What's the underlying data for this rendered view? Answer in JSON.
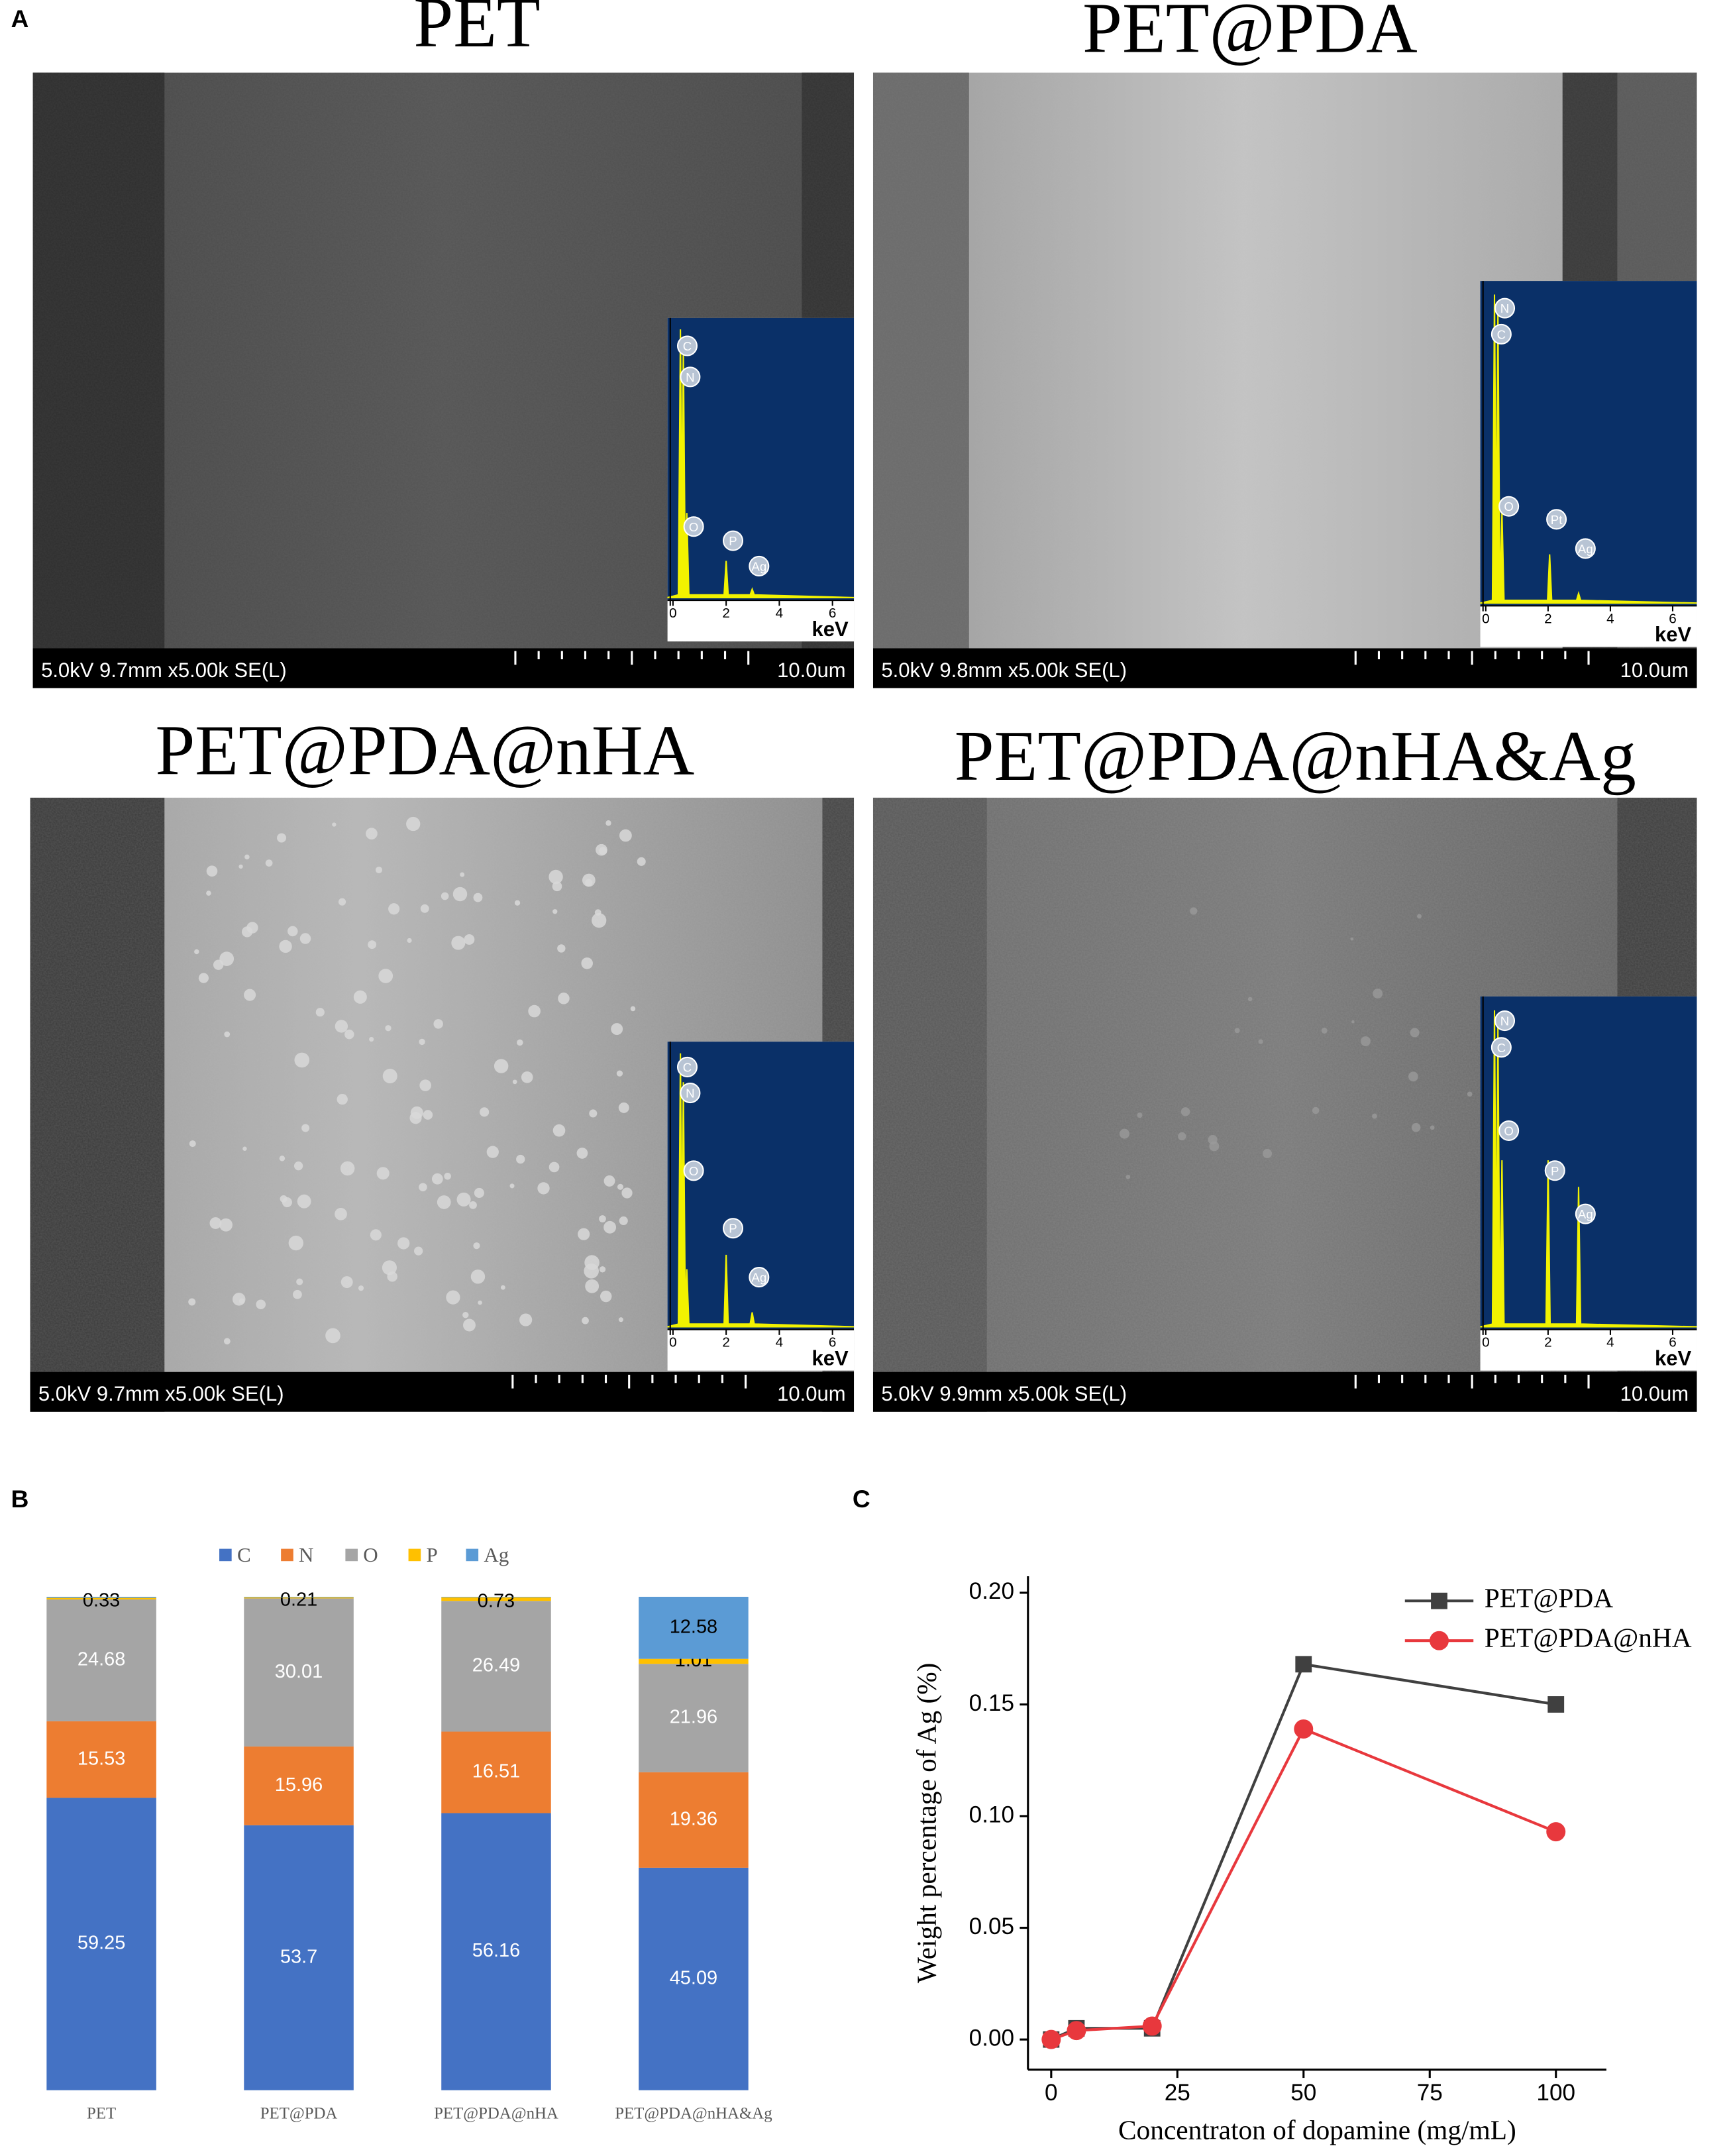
{
  "panel_labels": [
    "A",
    "B",
    "C"
  ],
  "sem_images": [
    {
      "title": "PET",
      "info": "5.0kV 9.7mm x5.00k SE(L)",
      "scale": "10.0um",
      "eds_peaks": [
        "C",
        "N",
        "O",
        "P",
        "Ag"
      ]
    },
    {
      "title": "PET@PDA",
      "info": "5.0kV 9.8mm x5.00k SE(L)",
      "scale": "10.0um",
      "eds_peaks": [
        "N",
        "C",
        "O",
        "Pt",
        "Ag"
      ]
    },
    {
      "title": "PET@PDA@nHA",
      "info": "5.0kV 9.7mm x5.00k SE(L)",
      "scale": "10.0um",
      "eds_peaks": [
        "C",
        "N",
        "O",
        "P",
        "Ag"
      ]
    },
    {
      "title": "PET@PDA@nHA&Ag",
      "info": "5.0kV 9.9mm x5.00k SE(L)",
      "scale": "10.0um",
      "eds_peaks": [
        "N",
        "C",
        "O",
        "P",
        "Ag"
      ]
    }
  ],
  "eds_xticks": [
    0,
    2,
    4,
    6
  ],
  "eds_unit": "keV",
  "chart_data": [
    {
      "type": "stacked_bar",
      "categories": [
        "PET",
        "PET@PDA",
        "PET@PDA@nHA",
        "PET@PDA@nHA&Ag"
      ],
      "ylim": [
        0,
        100
      ],
      "series": [
        {
          "name": "C",
          "color": "#4472c4",
          "values": [
            59.25,
            53.7,
            56.16,
            45.09
          ]
        },
        {
          "name": "N",
          "color": "#ed7d31",
          "values": [
            15.53,
            15.96,
            16.51,
            19.36
          ]
        },
        {
          "name": "O",
          "color": "#a5a5a5",
          "values": [
            24.68,
            30.01,
            26.49,
            21.96
          ]
        },
        {
          "name": "P",
          "color": "#ffc000",
          "values": [
            0.33,
            0.21,
            0.73,
            1.01
          ]
        },
        {
          "name": "Ag",
          "color": "#5b9bd5",
          "values": [
            0.21,
            0.12,
            0.11,
            12.58
          ],
          "value_labels": [
            null,
            null,
            null,
            "12.58"
          ]
        }
      ]
    },
    {
      "type": "line",
      "xlabel": "Concentraton of dopamine (mg/mL)",
      "ylabel": "Weight percentage of Ag (%)",
      "x": [
        0,
        5,
        20,
        50,
        100
      ],
      "xlim": [
        -4.6,
        110
      ],
      "xticks": [
        0,
        25,
        50,
        75,
        100
      ],
      "ylim": [
        -0.0135,
        0.2074
      ],
      "yticks": [
        {
          "value": 0,
          "label": "0.00"
        },
        {
          "value": 0.05,
          "label": "0.05"
        },
        {
          "value": 0.1,
          "label": "0.10"
        },
        {
          "value": 0.15,
          "label": "0.15"
        },
        {
          "value": 0.2,
          "label": "0.20"
        }
      ],
      "legend": "upper right",
      "series": [
        {
          "name": "PET@PDA",
          "color": "#404040",
          "marker": "square",
          "values": [
            0,
            0.005,
            0.005,
            0.168,
            0.15
          ]
        },
        {
          "name": "PET@PDA@nHA",
          "color": "#e8383d",
          "marker": "circle",
          "values": [
            0,
            0.004,
            0.006,
            0.139,
            0.093
          ]
        }
      ]
    }
  ]
}
